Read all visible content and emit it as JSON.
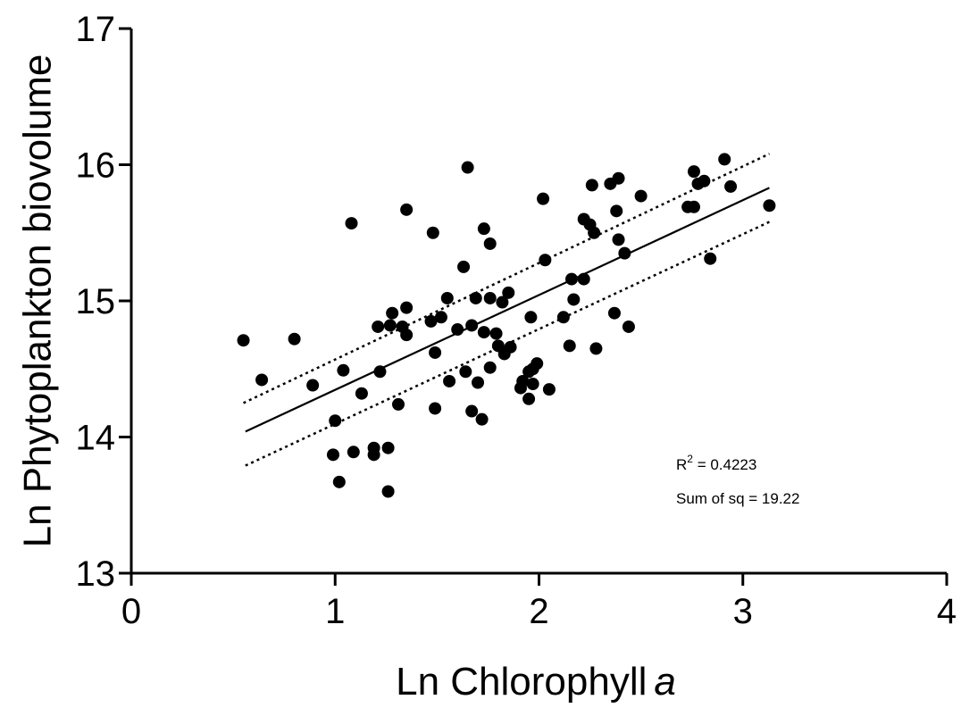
{
  "chart_data": {
    "type": "scatter",
    "xlabel": "Ln Chlorophyll",
    "xlabel_italic": "a",
    "ylabel": "Ln Phytoplankton biovolume",
    "xlim": [
      0,
      4
    ],
    "xticks": [
      0,
      1,
      2,
      3,
      4
    ],
    "ylim": [
      13,
      17
    ],
    "yticks": [
      13,
      14,
      15,
      16,
      17
    ],
    "series": [
      {
        "color": "#000000",
        "x": [
          0.55,
          0.64,
          0.8,
          0.89,
          1.04,
          1.08,
          1.0,
          0.99,
          1.02,
          1.09,
          1.13,
          1.19,
          1.19,
          1.26,
          1.26,
          1.22,
          1.21,
          1.27,
          1.28,
          1.31,
          1.33,
          1.35,
          1.35,
          1.35,
          1.48,
          1.47,
          1.49,
          1.49,
          1.52,
          1.55,
          1.56,
          1.6,
          1.63,
          1.65,
          1.64,
          1.67,
          1.69,
          1.67,
          1.7,
          1.72,
          1.73,
          1.73,
          1.76,
          1.76,
          1.76,
          1.79,
          1.8,
          1.82,
          1.83,
          1.85,
          1.86,
          1.91,
          1.92,
          1.95,
          1.95,
          1.97,
          1.97,
          1.99,
          1.96,
          2.02,
          2.03,
          2.05,
          2.12,
          2.15,
          2.16,
          2.17,
          2.22,
          2.22,
          2.25,
          2.27,
          2.26,
          2.28,
          2.35,
          2.39,
          2.38,
          2.39,
          2.37,
          2.42,
          2.44,
          2.5,
          2.73,
          2.76,
          2.76,
          2.78,
          2.81,
          2.84,
          2.91,
          2.94,
          3.13
        ],
        "values": [
          14.71,
          14.42,
          14.72,
          14.38,
          14.49,
          15.57,
          14.12,
          13.87,
          13.67,
          13.89,
          14.32,
          13.92,
          13.87,
          13.92,
          13.6,
          14.48,
          14.81,
          14.82,
          14.91,
          14.24,
          14.81,
          14.95,
          14.75,
          15.67,
          15.5,
          14.85,
          14.62,
          14.21,
          14.88,
          15.02,
          14.41,
          14.79,
          15.25,
          15.98,
          14.48,
          14.82,
          15.02,
          14.19,
          14.4,
          14.13,
          14.77,
          15.53,
          14.51,
          15.42,
          15.02,
          14.76,
          14.67,
          14.99,
          14.61,
          15.06,
          14.66,
          14.36,
          14.41,
          14.48,
          14.28,
          14.39,
          14.5,
          14.54,
          14.88,
          15.75,
          15.3,
          14.35,
          14.88,
          14.67,
          15.16,
          15.01,
          15.16,
          15.6,
          15.56,
          15.5,
          15.85,
          14.65,
          15.86,
          15.9,
          15.66,
          15.45,
          14.91,
          15.35,
          14.81,
          15.77,
          15.69,
          15.69,
          15.95,
          15.86,
          15.88,
          15.31,
          16.04,
          15.84,
          15.7
        ]
      }
    ],
    "lines": [
      {
        "style": "solid",
        "color": "#000000",
        "x": [
          0.56,
          3.13
        ],
        "values": [
          14.04,
          15.83
        ]
      },
      {
        "style": "dotted",
        "color": "#000000",
        "x": [
          0.55,
          3.13
        ],
        "values": [
          14.25,
          16.08
        ]
      },
      {
        "style": "dotted",
        "color": "#000000",
        "x": [
          0.56,
          3.13
        ],
        "values": [
          13.79,
          15.58
        ]
      }
    ],
    "annotations": {
      "r_squared": {
        "label": "R",
        "sup": "2",
        "text": " = 0.4223"
      },
      "sum_of_squares": "Sum of sq = 19.22"
    }
  }
}
